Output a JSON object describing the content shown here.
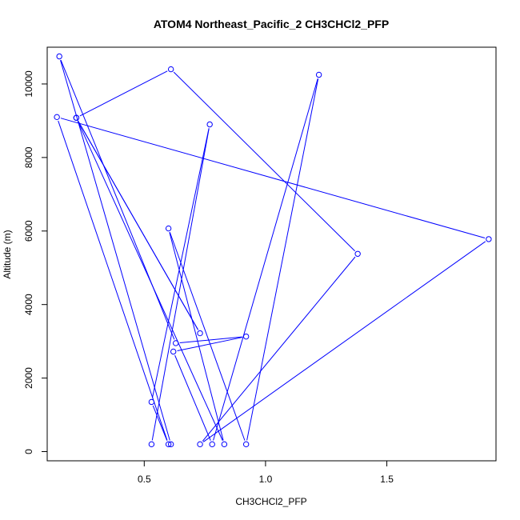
{
  "chart_data": {
    "type": "line",
    "title": "ATOM4 Northeast_Pacific_2 CH3CHCl2_PFP",
    "xlabel": "CH3CHCl2_PFP",
    "ylabel": "Altitude (m)",
    "xlim": [
      0.1,
      1.95
    ],
    "ylim": [
      -250,
      11000
    ],
    "x_ticks": [
      0.5,
      1.0,
      1.5
    ],
    "x_tick_labels": [
      "0.5",
      "1.0",
      "1.5"
    ],
    "y_ticks": [
      0,
      2000,
      4000,
      6000,
      8000,
      10000
    ],
    "y_tick_labels": [
      "0",
      "2000",
      "4000",
      "6000",
      "8000",
      "10000"
    ],
    "series_color": "#0000ff",
    "marker": "open-circle",
    "grid": false,
    "legend": "none",
    "series": [
      {
        "x": [
          0.53,
          0.77,
          0.53,
          0.6,
          0.14,
          1.92,
          0.73,
          1.38,
          0.61,
          0.22,
          0.73,
          0.22,
          0.83,
          0.6,
          0.92,
          1.22,
          0.78,
          0.62,
          0.92,
          0.63,
          0.15,
          0.61
        ],
        "y": [
          200,
          8900,
          1350,
          200,
          9100,
          5780,
          200,
          5380,
          10400,
          9080,
          3220,
          9080,
          200,
          6070,
          200,
          10250,
          200,
          2720,
          3130,
          2950,
          10750,
          200
        ]
      }
    ]
  }
}
